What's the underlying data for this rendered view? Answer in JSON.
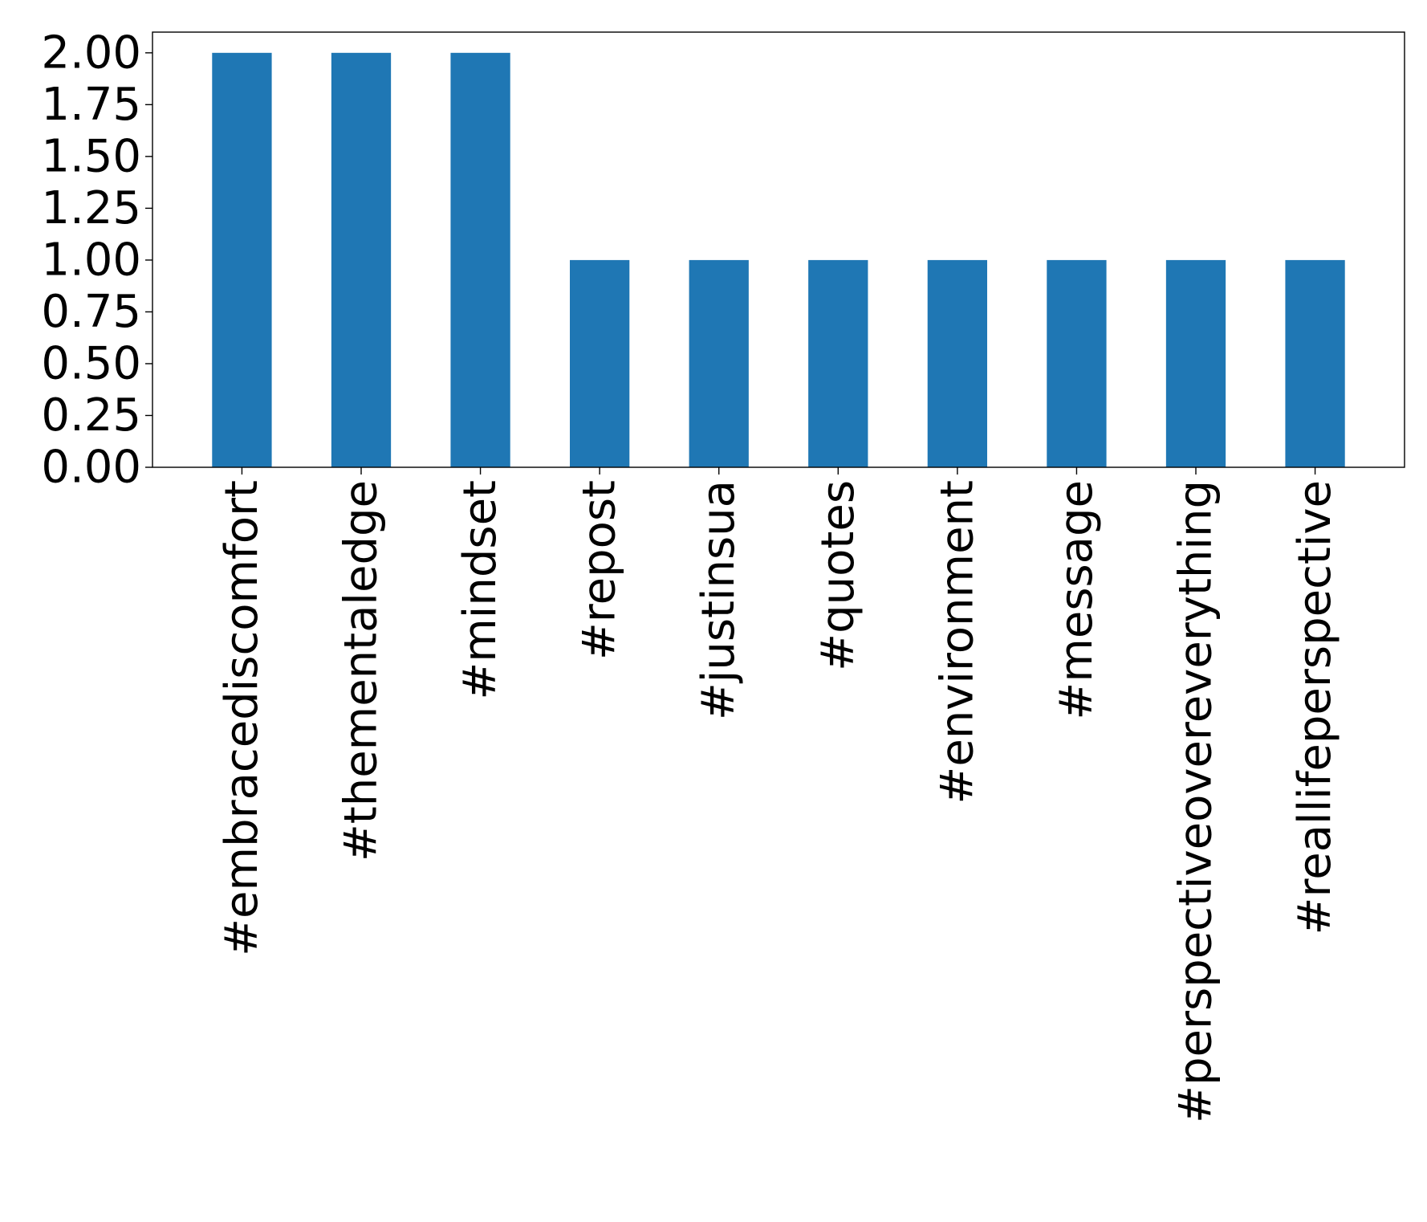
{
  "chart_data": {
    "type": "bar",
    "title": "",
    "xlabel": "",
    "ylabel": "",
    "categories": [
      "#embracediscomfort",
      "#thementaledge",
      "#mindset",
      "#repost",
      "#justinsua",
      "#quotes",
      "#environment",
      "#message",
      "#perspectiveovereverything",
      "#reallifeperspective"
    ],
    "values": [
      2,
      2,
      2,
      1,
      1,
      1,
      1,
      1,
      1,
      1
    ],
    "ylim": [
      0,
      2.1
    ],
    "yticks": [
      0,
      0.25,
      0.5,
      0.75,
      1.0,
      1.25,
      1.5,
      1.75,
      2.0
    ],
    "ytick_labels": [
      "0.00",
      "0.25",
      "0.50",
      "0.75",
      "1.00",
      "1.25",
      "1.50",
      "1.75",
      "2.00"
    ],
    "grid": false,
    "legend": "none",
    "bar_color": "#1f77b4"
  }
}
